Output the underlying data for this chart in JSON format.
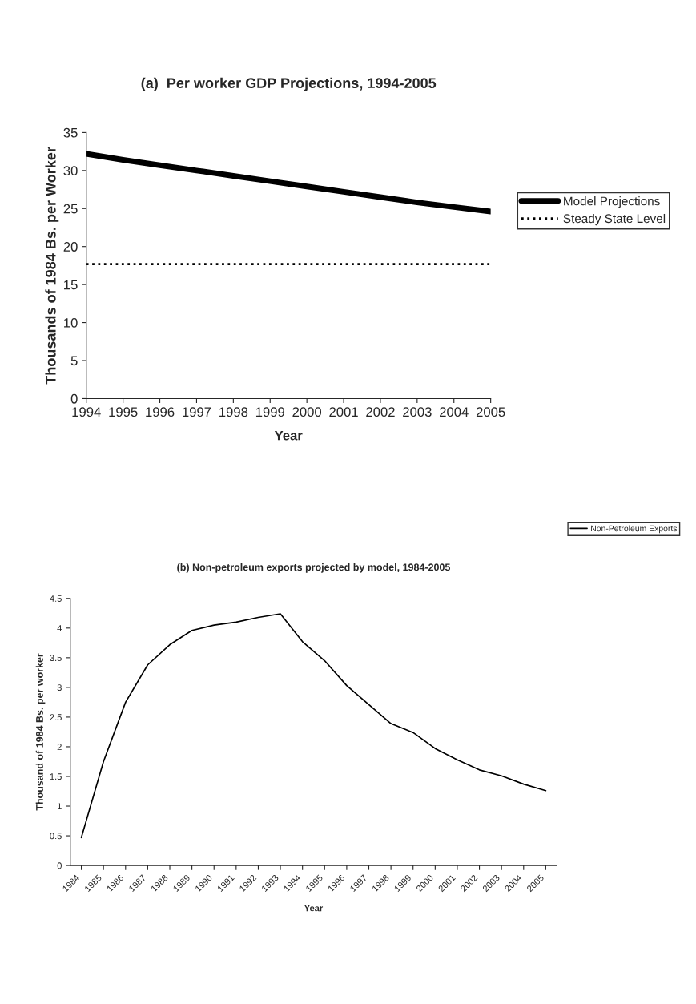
{
  "chart_data": [
    {
      "type": "line",
      "title": "(a)  Per worker GDP Projections, 1994-2005",
      "xlabel": "Year",
      "ylabel": "Thousands of 1984 Bs. per Worker",
      "categories": [
        "1994",
        "1995",
        "1996",
        "1997",
        "1998",
        "1999",
        "2000",
        "2001",
        "2002",
        "2003",
        "2004",
        "2005"
      ],
      "series": [
        {
          "name": "Model Projections",
          "color": "#000000",
          "line_style": "solid",
          "values": [
            32.2,
            31.4,
            30.7,
            30.0,
            29.3,
            28.6,
            27.9,
            27.2,
            26.5,
            25.8,
            25.2,
            24.6
          ]
        },
        {
          "name": "Steady State Level",
          "color": "#000000",
          "line_style": "dotted",
          "values": [
            17.7,
            17.7,
            17.7,
            17.7,
            17.7,
            17.7,
            17.7,
            17.7,
            17.7,
            17.7,
            17.7,
            17.7
          ]
        }
      ],
      "ylim": [
        0,
        35
      ],
      "yticks": [
        0,
        5,
        10,
        15,
        20,
        25,
        30,
        35
      ],
      "grid": false,
      "legend": "right"
    },
    {
      "type": "line",
      "title": "(b) Non-petroleum exports projected by model, 1984-2005",
      "xlabel": "Year",
      "ylabel": "Thousand of 1984 Bs. per worker",
      "categories": [
        "1984",
        "1985",
        "1986",
        "1987",
        "1988",
        "1989",
        "1990",
        "1991",
        "1992",
        "1993",
        "1994",
        "1995",
        "1996",
        "1997",
        "1998",
        "1999",
        "2000",
        "2001",
        "2002",
        "2003",
        "2004",
        "2005"
      ],
      "series": [
        {
          "name": "Non-Petroleum Exports",
          "color": "#000000",
          "line_style": "solid",
          "values": [
            0.47,
            1.75,
            2.75,
            3.38,
            3.72,
            3.96,
            4.05,
            4.1,
            4.18,
            4.24,
            3.77,
            3.45,
            3.03,
            2.71,
            2.39,
            2.24,
            1.97,
            1.78,
            1.61,
            1.51,
            1.37,
            1.26
          ]
        }
      ],
      "ylim": [
        0,
        4.5
      ],
      "yticks": [
        0,
        0.5,
        1,
        1.5,
        2,
        2.5,
        3,
        3.5,
        4,
        4.5
      ],
      "grid": false,
      "legend": "right"
    }
  ]
}
